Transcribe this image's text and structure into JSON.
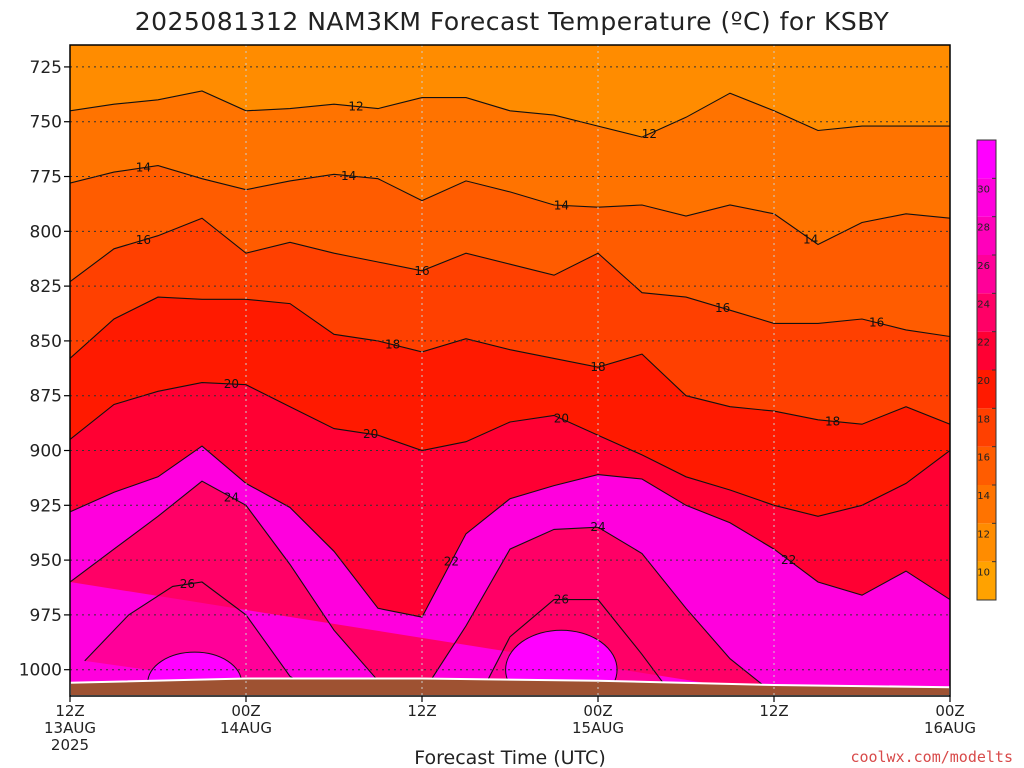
{
  "chart_data": {
    "type": "heatmap",
    "title": "2025081312 NAM3KM Forecast Temperature (ºC) for KSBY",
    "xlabel": "Forecast Time (UTC)",
    "ylabel": "",
    "y_axis": {
      "scale": "pressure",
      "ylim": [
        1012,
        715
      ],
      "ticks": [
        725,
        750,
        775,
        800,
        825,
        850,
        875,
        900,
        925,
        950,
        975,
        1000
      ]
    },
    "x_axis": {
      "range_hours": [
        0,
        60
      ],
      "ticks": [
        {
          "hour": 0,
          "line1": "12Z",
          "line2": "13AUG",
          "line3": "2025"
        },
        {
          "hour": 12,
          "line1": "00Z",
          "line2": "14AUG",
          "line3": ""
        },
        {
          "hour": 24,
          "line1": "12Z",
          "line2": "",
          "line3": ""
        },
        {
          "hour": 36,
          "line1": "00Z",
          "line2": "15AUG",
          "line3": ""
        },
        {
          "hour": 48,
          "line1": "12Z",
          "line2": "",
          "line3": ""
        },
        {
          "hour": 60,
          "line1": "00Z",
          "line2": "16AUG",
          "line3": ""
        }
      ]
    },
    "grid": true,
    "colorbar": {
      "placement": "right",
      "levels": [
        10,
        12,
        14,
        16,
        18,
        20,
        22,
        24,
        26,
        28,
        30
      ],
      "colors": [
        "#ffa200",
        "#ff8c00",
        "#ff7300",
        "#ff5c00",
        "#ff4000",
        "#ff1a00",
        "#ff0033",
        "#ff0066",
        "#ff0099",
        "#ff00bb",
        "#ff00dd",
        "#ff00ff"
      ]
    },
    "isotherms": [
      {
        "value": 12,
        "pressure_by_hour": [
          [
            0,
            745
          ],
          [
            3,
            742
          ],
          [
            6,
            740
          ],
          [
            9,
            736
          ],
          [
            12,
            745
          ],
          [
            15,
            744
          ],
          [
            18,
            742
          ],
          [
            21,
            744
          ],
          [
            24,
            739
          ],
          [
            27,
            739
          ],
          [
            30,
            745
          ],
          [
            33,
            747
          ],
          [
            36,
            752
          ],
          [
            39,
            757
          ],
          [
            42,
            748
          ],
          [
            45,
            737
          ],
          [
            48,
            745
          ],
          [
            51,
            754
          ],
          [
            54,
            752
          ],
          [
            57,
            752
          ],
          [
            60,
            752
          ]
        ],
        "labels": [
          {
            "hour": 19.5,
            "text": "12"
          },
          {
            "hour": 39.5,
            "text": "12"
          }
        ]
      },
      {
        "value": 14,
        "pressure_by_hour": [
          [
            0,
            778
          ],
          [
            3,
            773
          ],
          [
            6,
            770
          ],
          [
            9,
            776
          ],
          [
            12,
            781
          ],
          [
            15,
            777
          ],
          [
            18,
            774
          ],
          [
            21,
            776
          ],
          [
            24,
            786
          ],
          [
            27,
            777
          ],
          [
            30,
            782
          ],
          [
            33,
            788
          ],
          [
            36,
            789
          ],
          [
            39,
            788
          ],
          [
            42,
            793
          ],
          [
            45,
            788
          ],
          [
            48,
            792
          ],
          [
            51,
            806
          ],
          [
            54,
            796
          ],
          [
            57,
            792
          ],
          [
            60,
            794
          ]
        ],
        "labels": [
          {
            "hour": 5,
            "text": "14"
          },
          {
            "hour": 19,
            "text": "14"
          },
          {
            "hour": 33.5,
            "text": "14"
          },
          {
            "hour": 50.5,
            "text": "14"
          }
        ]
      },
      {
        "value": 16,
        "pressure_by_hour": [
          [
            0,
            823
          ],
          [
            3,
            808
          ],
          [
            6,
            802
          ],
          [
            9,
            794
          ],
          [
            12,
            810
          ],
          [
            15,
            805
          ],
          [
            18,
            810
          ],
          [
            21,
            814
          ],
          [
            24,
            818
          ],
          [
            27,
            810
          ],
          [
            30,
            815
          ],
          [
            33,
            820
          ],
          [
            36,
            810
          ],
          [
            39,
            828
          ],
          [
            42,
            830
          ],
          [
            45,
            836
          ],
          [
            48,
            842
          ],
          [
            51,
            842
          ],
          [
            54,
            840
          ],
          [
            57,
            845
          ],
          [
            60,
            848
          ]
        ],
        "labels": [
          {
            "hour": 5,
            "text": "16"
          },
          {
            "hour": 24,
            "text": "16"
          },
          {
            "hour": 44.5,
            "text": "16"
          },
          {
            "hour": 55,
            "text": "16"
          }
        ]
      },
      {
        "value": 18,
        "pressure_by_hour": [
          [
            0,
            858
          ],
          [
            3,
            840
          ],
          [
            6,
            830
          ],
          [
            9,
            831
          ],
          [
            12,
            831
          ],
          [
            15,
            833
          ],
          [
            18,
            847
          ],
          [
            21,
            850
          ],
          [
            24,
            855
          ],
          [
            27,
            849
          ],
          [
            30,
            854
          ],
          [
            33,
            858
          ],
          [
            36,
            862
          ],
          [
            39,
            856
          ],
          [
            42,
            875
          ],
          [
            45,
            880
          ],
          [
            48,
            882
          ],
          [
            51,
            886
          ],
          [
            54,
            888
          ],
          [
            57,
            880
          ],
          [
            60,
            888
          ]
        ],
        "labels": [
          {
            "hour": 22,
            "text": "18"
          },
          {
            "hour": 36,
            "text": "18"
          },
          {
            "hour": 52,
            "text": "18"
          }
        ]
      },
      {
        "value": 20,
        "pressure_by_hour": [
          [
            0,
            895
          ],
          [
            3,
            879
          ],
          [
            6,
            873
          ],
          [
            9,
            869
          ],
          [
            12,
            870
          ],
          [
            15,
            880
          ],
          [
            18,
            890
          ],
          [
            21,
            893
          ],
          [
            24,
            900
          ],
          [
            27,
            896
          ],
          [
            30,
            887
          ],
          [
            33,
            884
          ],
          [
            36,
            893
          ],
          [
            39,
            902
          ],
          [
            42,
            912
          ],
          [
            45,
            918
          ],
          [
            48,
            925
          ],
          [
            51,
            930
          ],
          [
            54,
            925
          ],
          [
            57,
            915
          ],
          [
            60,
            900
          ]
        ],
        "labels": [
          {
            "hour": 11,
            "text": "20"
          },
          {
            "hour": 20.5,
            "text": "20"
          },
          {
            "hour": 33.5,
            "text": "20"
          }
        ]
      },
      {
        "value": 22,
        "pressure_by_hour": [
          [
            0,
            928
          ],
          [
            3,
            919
          ],
          [
            6,
            912
          ],
          [
            9,
            898
          ],
          [
            12,
            915
          ],
          [
            15,
            926
          ],
          [
            18,
            946
          ],
          [
            21,
            972
          ],
          [
            24,
            976
          ],
          [
            27,
            938
          ],
          [
            30,
            922
          ],
          [
            33,
            916
          ],
          [
            36,
            911
          ],
          [
            39,
            913
          ],
          [
            42,
            925
          ],
          [
            45,
            933
          ],
          [
            48,
            945
          ],
          [
            51,
            960
          ],
          [
            54,
            966
          ],
          [
            57,
            955
          ],
          [
            60,
            968
          ]
        ],
        "labels": [
          {
            "hour": 26,
            "text": "22"
          },
          {
            "hour": 49,
            "text": "22"
          }
        ]
      },
      {
        "value": 24,
        "pressure_by_hour": [
          [
            0,
            960
          ],
          [
            3,
            945
          ],
          [
            6,
            930
          ],
          [
            9,
            914
          ],
          [
            12,
            925
          ],
          [
            15,
            952
          ],
          [
            18,
            982
          ],
          [
            21,
            1005
          ],
          [
            24,
            1011
          ],
          [
            27,
            980
          ],
          [
            30,
            945
          ],
          [
            33,
            936
          ],
          [
            36,
            935
          ],
          [
            39,
            947
          ],
          [
            42,
            972
          ],
          [
            45,
            995
          ],
          [
            48,
            1011
          ]
        ],
        "labels": [
          {
            "hour": 11,
            "text": "24"
          },
          {
            "hour": 36,
            "text": "24"
          }
        ]
      },
      {
        "value": 26,
        "pressure_by_hour": [
          [
            1,
            996
          ],
          [
            4,
            975
          ],
          [
            7,
            962
          ],
          [
            9,
            960
          ],
          [
            12,
            975
          ],
          [
            15,
            1003
          ],
          [
            17,
            1011
          ]
        ],
        "labels": [
          {
            "hour": 8,
            "text": "26"
          }
        ]
      },
      {
        "value": 26,
        "pressure_by_hour": [
          [
            28,
            1011
          ],
          [
            30,
            985
          ],
          [
            33,
            968
          ],
          [
            36,
            968
          ],
          [
            39,
            993
          ],
          [
            41,
            1011
          ]
        ],
        "labels": [
          {
            "hour": 33.5,
            "text": "26"
          }
        ]
      }
    ],
    "warm_cores": [
      {
        "hour_center": 8.5,
        "pressure_center": 1006,
        "hour_halfwidth": 3.2,
        "pressure_halfwidth": 14
      },
      {
        "hour_center": 33.5,
        "pressure_center": 1000,
        "hour_halfwidth": 3.8,
        "pressure_halfwidth": 18
      }
    ],
    "terrain": {
      "surface_pressure_by_hour": [
        [
          0,
          1006
        ],
        [
          12,
          1004
        ],
        [
          24,
          1004
        ],
        [
          36,
          1005
        ],
        [
          48,
          1007
        ],
        [
          60,
          1008
        ]
      ]
    }
  },
  "credit": "coolwx.com/modelts",
  "colors": {
    "terrain": "#9e5232",
    "frame": "#000000",
    "grid": "#333333",
    "contour": "#111111"
  }
}
